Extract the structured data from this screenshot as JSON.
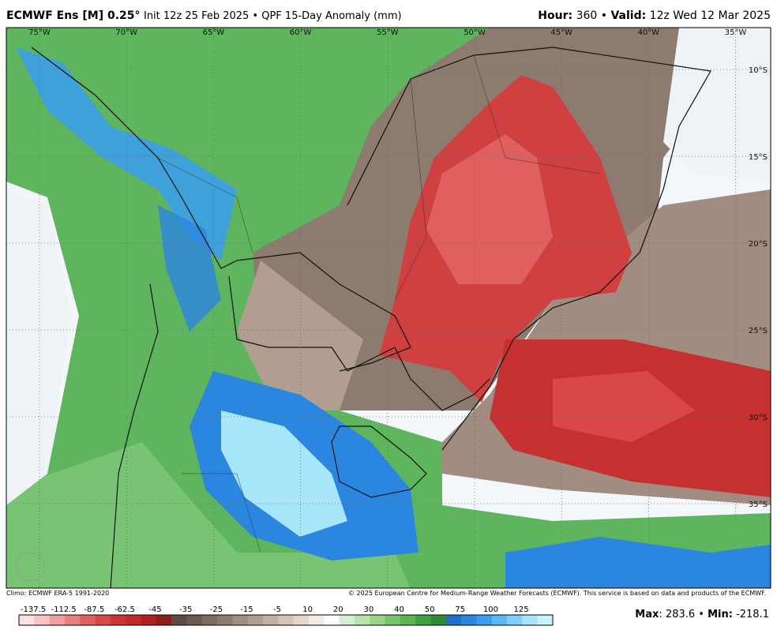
{
  "header": {
    "title": "ECMWF Ens [M] 0.25°",
    "subtitle": "Init 12z 25 Feb 2025 • QPF 15-Day Anomaly (mm)",
    "hour_label": "Hour:",
    "hour": "360",
    "separator": "•",
    "valid_label": "Valid:",
    "valid": "12z Wed 12 Mar 2025"
  },
  "map": {
    "longitudes": [
      "75°W",
      "70°W",
      "65°W",
      "60°W",
      "55°W",
      "50°W",
      "45°W",
      "40°W",
      "35°W"
    ],
    "latitudes": [
      "10°S",
      "15°S",
      "20°S",
      "25°S",
      "30°S",
      "35°S"
    ]
  },
  "footer": {
    "climo": "Climo: ECMWF ERA-5 1991-2020",
    "copyright": "© 2025 European Centre for Medium-Range Weather Forecasts (ECMWF). This service is based on data and products of the ECMWF.",
    "max_label": "Max",
    "max": "283.6",
    "min_label": "Min:",
    "min": "-218.1"
  },
  "colorbar": {
    "labels": [
      "-137.5",
      "-112.5",
      "-87.5",
      "-62.5",
      "-45",
      "-35",
      "-25",
      "-15",
      "-5",
      "10",
      "20",
      "30",
      "40",
      "50",
      "75",
      "100",
      "125"
    ],
    "colors": [
      "#fde0e0",
      "#f7c3c3",
      "#f0a0a0",
      "#e88080",
      "#e06060",
      "#d84848",
      "#cc3535",
      "#c02a2a",
      "#b02020",
      "#8f1c1c",
      "#5e4a44",
      "#6c5a52",
      "#7d6a60",
      "#8e7b70",
      "#a08c80",
      "#b29e90",
      "#c4b0a2",
      "#d5c3b6",
      "#e6d7cc",
      "#f3ebe4",
      "#ffffff",
      "#d6efd0",
      "#b8e3ad",
      "#98d58a",
      "#78c56c",
      "#5ab552",
      "#3fa040",
      "#2e8a35",
      "#2070c8",
      "#2b86e0",
      "#3a9ef0",
      "#5ab8f5",
      "#80d0f8",
      "#a8e6fb",
      "#c8f4fc"
    ]
  }
}
